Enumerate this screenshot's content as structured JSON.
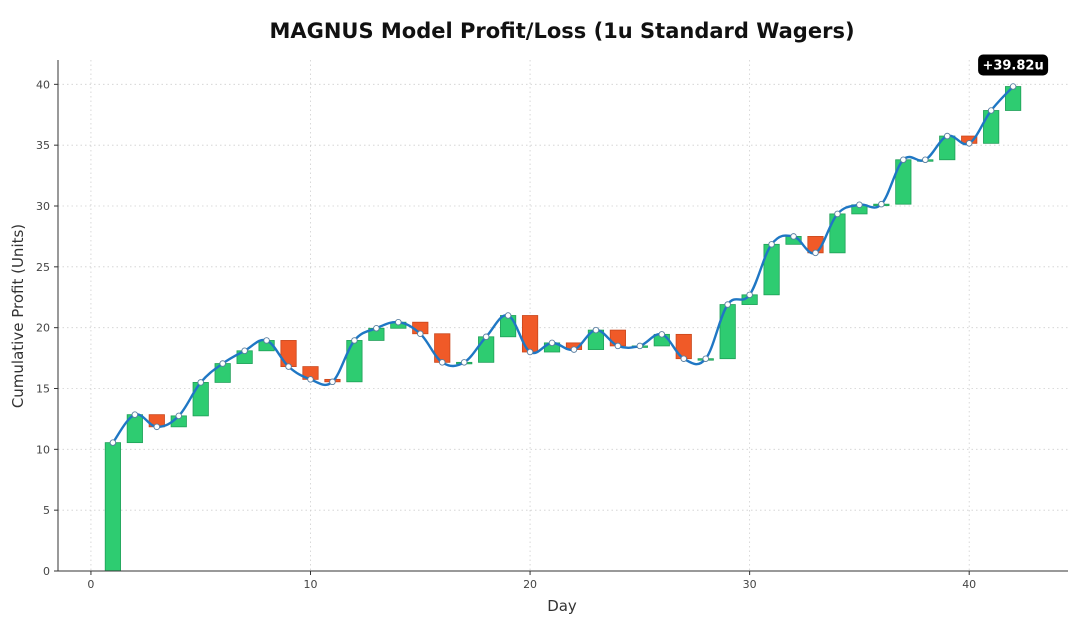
{
  "chart_data": {
    "type": "waterfall-line",
    "title": "MAGNUS Model Profit/Loss (1u Standard Wagers)",
    "xlabel": "Day",
    "ylabel": "Cumulative Profit (Units)",
    "xlim": [
      -1.5,
      44.5
    ],
    "ylim": [
      0,
      42
    ],
    "xticks": [
      "0",
      "10",
      "20",
      "30",
      "40"
    ],
    "yticks": [
      "0",
      "5",
      "10",
      "15",
      "20",
      "25",
      "30",
      "35",
      "40"
    ],
    "grid": true,
    "colors": {
      "gain": "#2ecc71",
      "loss": "#f05a28",
      "line": "#1f77c4",
      "marker_fill": "#ffffff",
      "badge": "#000000"
    },
    "final_label": "+39.82u",
    "x": [
      1,
      2,
      3,
      4,
      5,
      6,
      7,
      8,
      9,
      10,
      11,
      12,
      13,
      14,
      15,
      16,
      17,
      18,
      19,
      20,
      21,
      22,
      23,
      24,
      25,
      26,
      27,
      28,
      29,
      30,
      31,
      32,
      33,
      34,
      35,
      36,
      37,
      38,
      39,
      40,
      41,
      42
    ],
    "cumulative": [
      10.55,
      12.85,
      11.85,
      12.75,
      15.5,
      17.05,
      18.1,
      18.95,
      16.8,
      15.75,
      15.55,
      18.95,
      19.95,
      20.45,
      19.5,
      17.15,
      17.15,
      19.25,
      21.0,
      18.0,
      18.75,
      18.2,
      19.8,
      18.5,
      18.5,
      19.45,
      17.45,
      17.45,
      21.9,
      22.7,
      26.85,
      27.5,
      26.15,
      29.35,
      30.1,
      30.15,
      33.8,
      33.8,
      35.75,
      35.15,
      37.85,
      39.82
    ]
  }
}
